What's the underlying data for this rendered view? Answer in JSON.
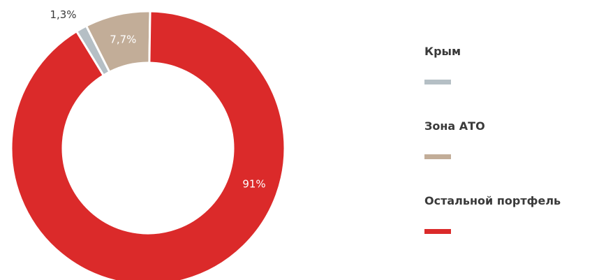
{
  "chart_data": {
    "type": "pie",
    "donut": true,
    "categories": [
      "Крым",
      "Зона АТО",
      "Остальной портфель"
    ],
    "values": [
      1.3,
      7.7,
      91
    ],
    "value_labels": [
      "1,3%",
      "7,7%",
      "91%"
    ],
    "colors": [
      "#b5bfc5",
      "#c2ad98",
      "#db2a2a"
    ],
    "legend_position": "right"
  }
}
